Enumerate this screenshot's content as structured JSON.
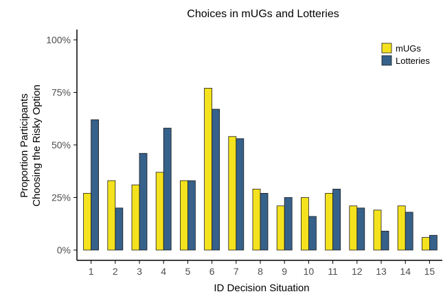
{
  "chart_data": {
    "type": "bar",
    "title": "Choices in mUGs and Lotteries",
    "xlabel": "ID Decision Situation",
    "ylabel_lines": [
      "Proportion Participants",
      "Choosing the Risky Option"
    ],
    "categories": [
      "1",
      "2",
      "3",
      "4",
      "5",
      "6",
      "7",
      "8",
      "9",
      "10",
      "11",
      "12",
      "13",
      "14",
      "15"
    ],
    "series": [
      {
        "name": "mUGs",
        "color": "#f5e21e",
        "values": [
          0.27,
          0.33,
          0.31,
          0.37,
          0.33,
          0.77,
          0.54,
          0.29,
          0.21,
          0.25,
          0.27,
          0.21,
          0.19,
          0.21,
          0.06
        ]
      },
      {
        "name": "Lotteries",
        "color": "#36618a",
        "values": [
          0.62,
          0.2,
          0.46,
          0.58,
          0.33,
          0.67,
          0.53,
          0.27,
          0.25,
          0.16,
          0.29,
          0.2,
          0.09,
          0.18,
          0.07
        ]
      }
    ],
    "ylim": [
      0,
      1.05
    ],
    "yticks": [
      0,
      0.25,
      0.5,
      0.75,
      1.0
    ],
    "ytick_labels": [
      "0%",
      "25%",
      "50%",
      "75%",
      "100%"
    ],
    "grid": false,
    "legend_position": "top-right"
  }
}
